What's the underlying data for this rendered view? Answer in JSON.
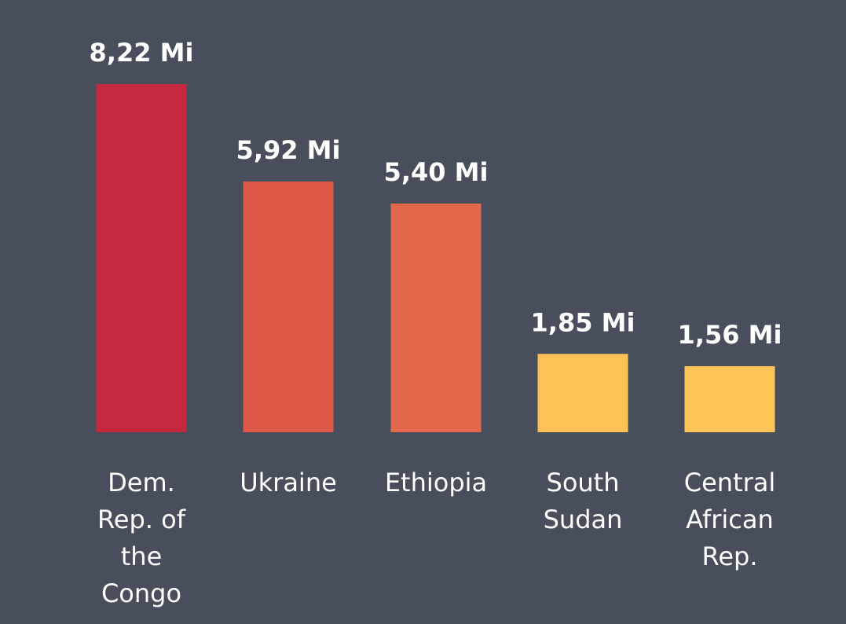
{
  "chart_data": {
    "type": "bar",
    "categories": [
      "Dem. Rep. of the Congo",
      "Ukraine",
      "Ethiopia",
      "South Sudan",
      "Central African Rep."
    ],
    "category_lines": [
      [
        "Dem.",
        "Rep. of",
        "the",
        "Congo"
      ],
      [
        "Ukraine"
      ],
      [
        "Ethiopia"
      ],
      [
        "South",
        "Sudan"
      ],
      [
        "Central",
        "African",
        "Rep."
      ]
    ],
    "values": [
      8.22,
      5.92,
      5.4,
      1.85,
      1.56
    ],
    "value_labels": [
      "8,22 Mi",
      "5,92 Mi",
      "5,40 Mi",
      "1,85 Mi",
      "1,56 Mi"
    ],
    "bar_colors": [
      "#c4283f",
      "#de5849",
      "#e3684c",
      "#fdc156",
      "#fdc458"
    ],
    "background_color": "#484e5c",
    "label_color": "#ffffff",
    "title": "",
    "xlabel": "",
    "ylabel": "",
    "ylim": [
      0,
      8.22
    ],
    "grid": false,
    "legend": "none"
  }
}
